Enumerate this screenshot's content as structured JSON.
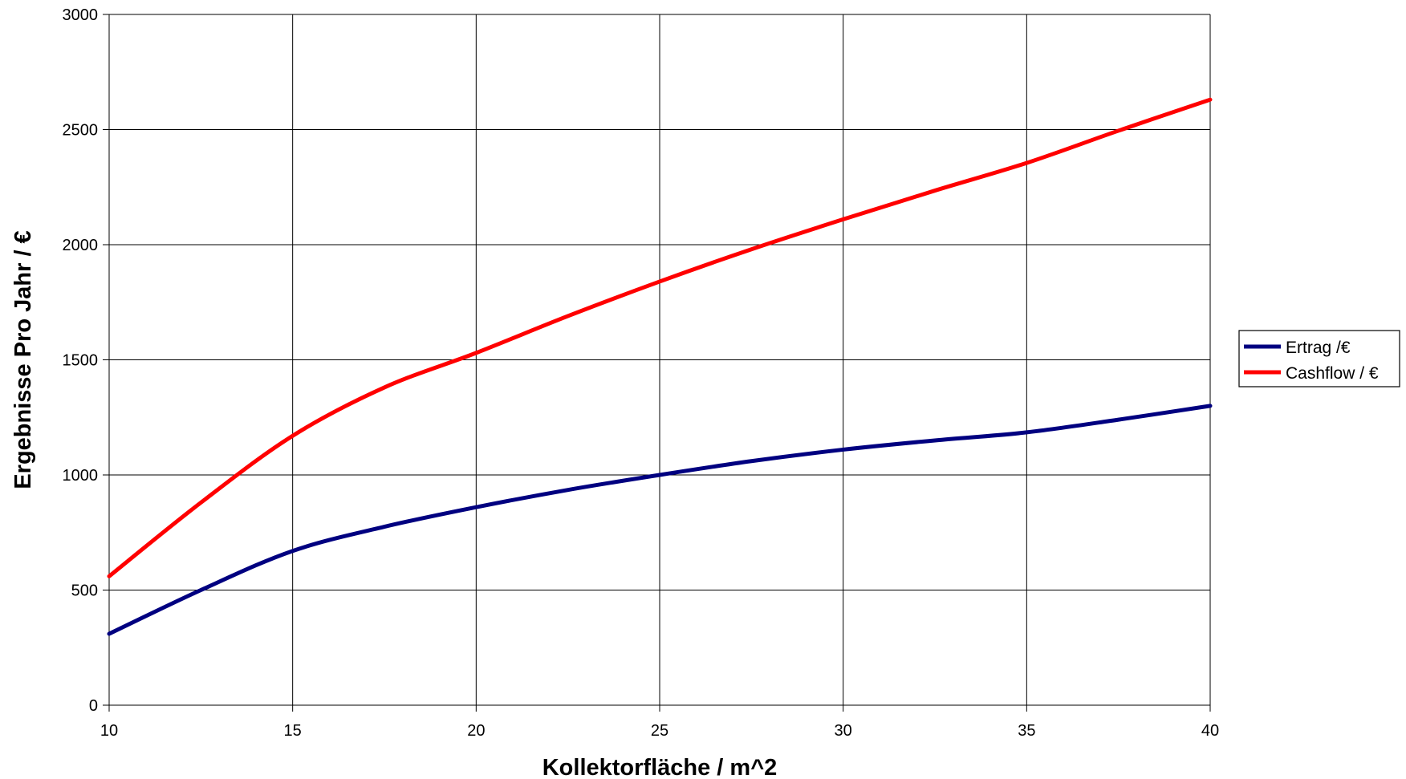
{
  "chart_data": {
    "type": "line",
    "title": "",
    "xlabel": "Kollektorfläche / m^2",
    "ylabel": "Ergebnisse Pro Jahr / €",
    "x": [
      10,
      12.5,
      15,
      17.5,
      20,
      22.5,
      25,
      27.5,
      30,
      32.5,
      35,
      37.5,
      40
    ],
    "x_ticks": [
      "10",
      "15",
      "20",
      "25",
      "30",
      "35",
      "40"
    ],
    "y_ticks": [
      "0",
      "500",
      "1000",
      "1500",
      "2000",
      "2500",
      "3000"
    ],
    "xlim": [
      10,
      40
    ],
    "ylim": [
      0,
      3000
    ],
    "grid": true,
    "legend_position": "right",
    "series": [
      {
        "name": "Ertrag /€",
        "color": "#000080",
        "values": [
          310,
          500,
          670,
          775,
          860,
          935,
          1000,
          1060,
          1110,
          1150,
          1185,
          1240,
          1300
        ]
      },
      {
        "name": "Cashflow / €",
        "color": "#ff0000",
        "values": [
          560,
          880,
          1170,
          1380,
          1530,
          1690,
          1840,
          1980,
          2110,
          2235,
          2355,
          2495,
          2630
        ]
      }
    ]
  }
}
